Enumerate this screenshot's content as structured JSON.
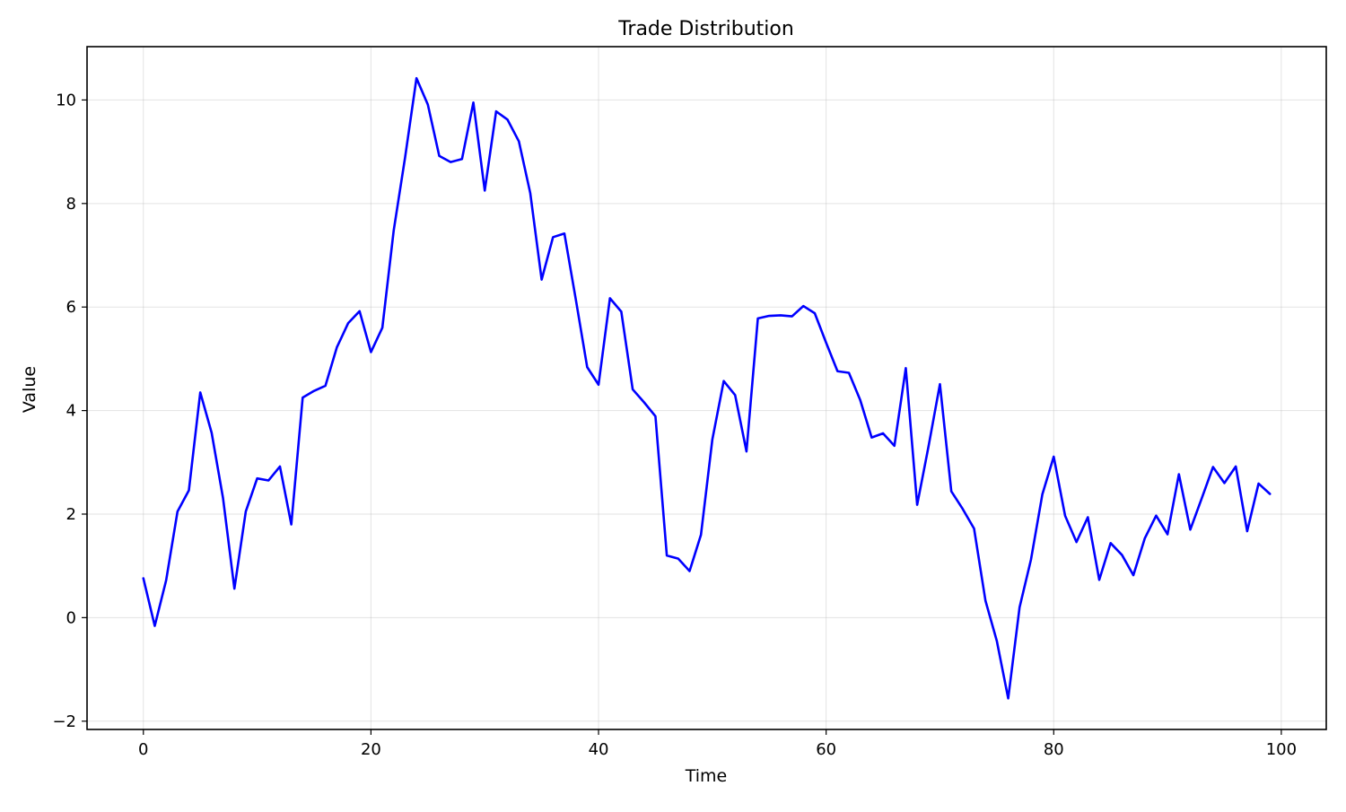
{
  "chart_data": {
    "type": "line",
    "title": "Trade Distribution",
    "xlabel": "Time",
    "ylabel": "Value",
    "xlim": [
      -4.95,
      103.95
    ],
    "ylim": [
      -2.16,
      11.03
    ],
    "xticks": [
      0,
      20,
      40,
      60,
      80,
      100
    ],
    "yticks": [
      -2,
      0,
      2,
      4,
      6,
      8,
      10
    ],
    "xtick_labels": [
      "0",
      "20",
      "40",
      "60",
      "80",
      "100"
    ],
    "ytick_labels": [
      "−2",
      "0",
      "2",
      "4",
      "6",
      "8",
      "10"
    ],
    "grid": true,
    "series": [
      {
        "color": "#0000ff",
        "x": [
          0,
          1,
          2,
          3,
          4,
          5,
          6,
          7,
          8,
          9,
          10,
          11,
          12,
          13,
          14,
          15,
          16,
          17,
          18,
          19,
          20,
          21,
          22,
          23,
          24,
          25,
          26,
          27,
          28,
          29,
          30,
          31,
          32,
          33,
          34,
          35,
          36,
          37,
          38,
          39,
          40,
          41,
          42,
          43,
          44,
          45,
          46,
          47,
          48,
          49,
          50,
          51,
          52,
          53,
          54,
          55,
          56,
          57,
          58,
          59,
          60,
          61,
          62,
          63,
          64,
          65,
          66,
          67,
          68,
          69,
          70,
          71,
          72,
          73,
          74,
          75,
          76,
          77,
          78,
          79,
          80,
          81,
          82,
          83,
          84,
          85,
          86,
          87,
          88,
          89,
          90,
          91,
          92,
          93,
          94,
          95,
          96,
          97,
          98,
          99
        ],
        "values": [
          0.76,
          -0.16,
          0.72,
          2.05,
          2.46,
          4.35,
          3.57,
          2.31,
          0.56,
          2.05,
          2.69,
          2.65,
          2.92,
          1.8,
          4.25,
          4.38,
          4.48,
          5.22,
          5.69,
          5.92,
          5.13,
          5.6,
          7.48,
          8.89,
          10.42,
          9.91,
          8.92,
          8.8,
          8.86,
          9.95,
          8.25,
          9.78,
          9.62,
          9.2,
          8.2,
          6.53,
          7.35,
          7.42,
          6.15,
          4.84,
          4.5,
          6.17,
          5.91,
          4.41,
          4.16,
          3.89,
          1.2,
          1.14,
          0.9,
          1.6,
          3.44,
          4.57,
          4.3,
          3.21,
          5.78,
          5.83,
          5.84,
          5.82,
          6.02,
          5.88,
          5.31,
          4.76,
          4.73,
          4.2,
          3.48,
          3.56,
          3.32,
          4.82,
          2.18,
          3.31,
          4.51,
          2.44,
          2.1,
          1.72,
          0.33,
          -0.45,
          -1.56,
          0.2,
          1.12,
          2.38,
          3.11,
          1.97,
          1.46,
          1.94,
          0.73,
          1.44,
          1.21,
          0.82,
          1.53,
          1.97,
          1.61,
          2.77,
          1.7,
          2.3,
          2.91,
          2.6,
          2.92,
          1.67,
          2.59,
          2.39
        ]
      }
    ]
  }
}
